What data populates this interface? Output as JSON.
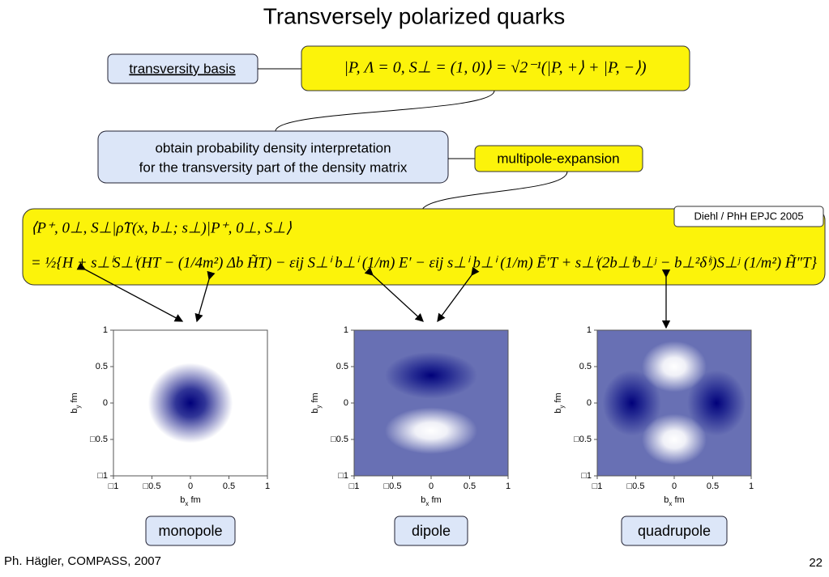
{
  "title": "Transversely polarized quarks",
  "basis": {
    "label": "transversity basis",
    "formula": "|P, Λ = 0, S⊥ = (1, 0)⟩ = √2⁻¹(|P, +⟩ + |P, −⟩)"
  },
  "interpretation": {
    "lines": [
      "obtain probability density interpretation",
      "for the transversity part of the density matrix"
    ]
  },
  "expansion": "multipole-expansion",
  "density": {
    "reference": "Diehl / PhH EPJC 2005",
    "lines": [
      "⟨P⁺, 0⊥, S⊥|ρ̂T(x, b⊥; s⊥)|P⁺, 0⊥, S⊥⟩",
      "= ½{H + s⊥ⁱS⊥ⁱ(HT − (1/4m²) Δb H̃T) − εij S⊥ⁱ b⊥ⁱ (1/m) E′ − εij s⊥ⁱ b⊥ⁱ (1/m) Ē′T + s⊥ⁱ(2b⊥ⁱb⊥ʲ − b⊥²δⁱʲ)S⊥ʲ (1/m²) H̃″T}"
    ]
  },
  "plots": [
    {
      "name": "monopole",
      "xlabel": {
        "base": "b",
        "sub": "x",
        "unit": " fm"
      },
      "ylabel": {
        "base": "b",
        "sub": "y",
        "unit": " fm"
      },
      "xticks": [
        {
          "value": -1,
          "label": "□1"
        },
        {
          "value": -0.5,
          "label": "□0.5"
        },
        0,
        0.5,
        1
      ],
      "yticks": [
        {
          "value": -1,
          "label": "□1"
        },
        {
          "value": -0.5,
          "label": "□0.5"
        },
        0,
        0.5,
        1
      ],
      "xlim": [
        -1,
        1
      ],
      "ylim": [
        -1,
        1
      ]
    },
    {
      "name": "dipole",
      "xlabel": {
        "base": "b",
        "sub": "x",
        "unit": " fm"
      },
      "ylabel": {
        "base": "b",
        "sub": "y",
        "unit": " fm"
      },
      "xticks": [
        {
          "value": -1,
          "label": "□1"
        },
        {
          "value": -0.5,
          "label": "□0.5"
        },
        0,
        0.5,
        1
      ],
      "yticks": [
        {
          "value": -1,
          "label": "□1"
        },
        {
          "value": -0.5,
          "label": "□0.5"
        },
        0,
        0.5,
        1
      ],
      "xlim": [
        -1,
        1
      ],
      "ylim": [
        -1,
        1
      ]
    },
    {
      "name": "quadrupole",
      "xlabel": {
        "base": "b",
        "sub": "x",
        "unit": " fm"
      },
      "ylabel": {
        "base": "b",
        "sub": "y",
        "unit": " fm"
      },
      "xticks": [
        {
          "value": -1,
          "label": "□1"
        },
        {
          "value": -0.5,
          "label": "□0.5"
        },
        0,
        0.5,
        1
      ],
      "yticks": [
        {
          "value": -1,
          "label": "□1"
        },
        {
          "value": -0.5,
          "label": "□0.5"
        },
        0,
        0.5,
        1
      ],
      "xlim": [
        -1,
        1
      ],
      "ylim": [
        -1,
        1
      ]
    }
  ],
  "footer": {
    "left": "Ph. Hägler, COMPASS, 2007",
    "page": "22"
  }
}
